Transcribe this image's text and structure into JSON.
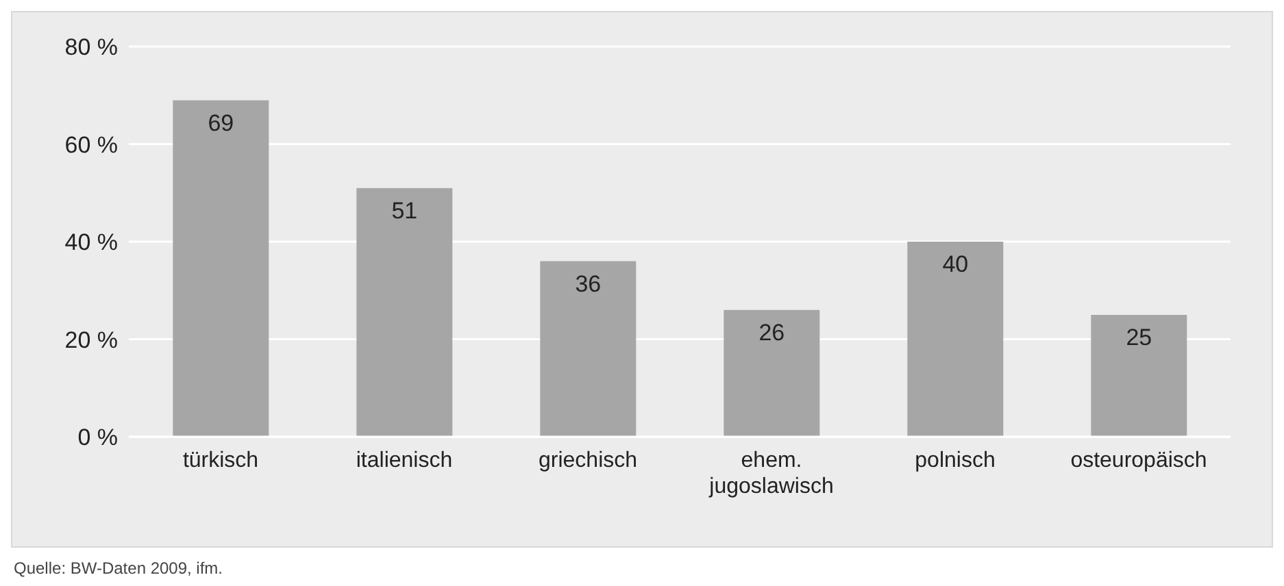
{
  "chart_data": {
    "type": "bar",
    "categories": [
      "türkisch",
      "italienisch",
      "griechisch",
      "ehem. jugoslawisch",
      "polnisch",
      "osteuropäisch"
    ],
    "values": [
      69,
      51,
      36,
      26,
      40,
      25
    ],
    "color": "#a6a6a6",
    "ylim": [
      0,
      80
    ],
    "yticks": [
      {
        "value": 0,
        "label": "0 %"
      },
      {
        "value": 20,
        "label": "20 %"
      },
      {
        "value": 40,
        "label": "40 %"
      },
      {
        "value": 60,
        "label": "60 %"
      },
      {
        "value": 80,
        "label": "80 %"
      }
    ],
    "grid": "y",
    "data_labels": true,
    "annotations": [
      "Quelle: BW-Daten 2009, ifm."
    ]
  }
}
